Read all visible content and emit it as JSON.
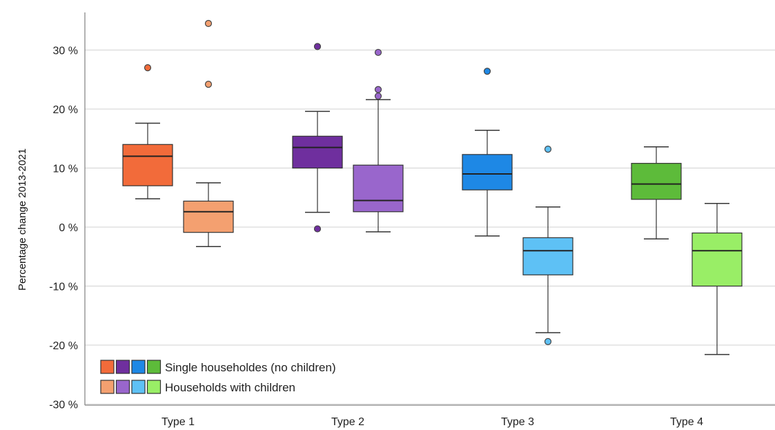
{
  "chart_data": {
    "type": "box",
    "title": "",
    "xlabel": "",
    "ylabel": "Percentage change 2013-2021",
    "ylim": [
      -30,
      35
    ],
    "yticks": [
      -30,
      -20,
      -10,
      0,
      10,
      20,
      30
    ],
    "ytick_labels": [
      "-30 %",
      "-20 %",
      "-10 %",
      "0 %",
      "10 %",
      "20 %",
      "30 %"
    ],
    "categories": [
      "Type 1",
      "Type 2",
      "Type 3",
      "Type 4"
    ],
    "grid": true,
    "legend_position": "bottom-left",
    "series": [
      {
        "name": "Single householdes (no children)",
        "colors": [
          "#f26b3a",
          "#6f2f9e",
          "#1e88e5",
          "#5dbb3a"
        ],
        "boxes": [
          {
            "whisker_low": 4.8,
            "q1": 7.0,
            "median": 12.0,
            "q3": 14.0,
            "whisker_high": 17.6,
            "outliers": [
              27.0
            ]
          },
          {
            "whisker_low": 2.5,
            "q1": 10.0,
            "median": 13.5,
            "q3": 15.4,
            "whisker_high": 19.6,
            "outliers": [
              30.6,
              -0.3
            ]
          },
          {
            "whisker_low": -1.5,
            "q1": 6.3,
            "median": 9.0,
            "q3": 12.3,
            "whisker_high": 16.4,
            "outliers": [
              26.4
            ]
          },
          {
            "whisker_low": -2.0,
            "q1": 4.7,
            "median": 7.3,
            "q3": 10.8,
            "whisker_high": 13.6,
            "outliers": []
          }
        ]
      },
      {
        "name": "Households with children",
        "colors": [
          "#f4a070",
          "#9966cc",
          "#5ec1f5",
          "#99ee66"
        ],
        "boxes": [
          {
            "whisker_low": -3.3,
            "q1": -0.9,
            "median": 2.6,
            "q3": 4.4,
            "whisker_high": 7.5,
            "outliers": [
              34.5,
              24.2
            ]
          },
          {
            "whisker_low": -0.8,
            "q1": 2.6,
            "median": 4.5,
            "q3": 10.5,
            "whisker_high": 21.6,
            "outliers": [
              29.6,
              23.3,
              22.2
            ]
          },
          {
            "whisker_low": -17.9,
            "q1": -8.1,
            "median": -4.0,
            "q3": -1.8,
            "whisker_high": 3.4,
            "outliers": [
              13.2,
              -19.4
            ]
          },
          {
            "whisker_low": -21.6,
            "q1": -10.0,
            "median": -4.0,
            "q3": -1.0,
            "whisker_high": 4.0,
            "outliers": []
          }
        ]
      }
    ]
  }
}
